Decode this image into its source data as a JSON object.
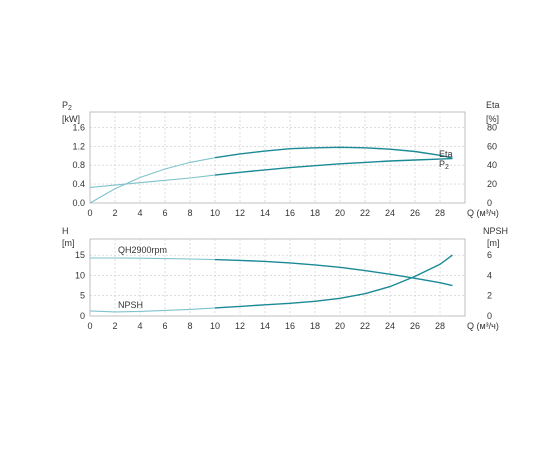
{
  "colors": {
    "curve_dark": "#1a8a96",
    "curve_light": "#7fc3cc",
    "text": "#333333",
    "grid": "#c8c8c8"
  },
  "chart_data": [
    {
      "type": "line",
      "panel": "power-efficiency",
      "xlabel": "Q (м³/ч)",
      "xlim": [
        0,
        30
      ],
      "x_ticks": [
        0,
        2,
        4,
        6,
        8,
        10,
        12,
        14,
        16,
        18,
        20,
        22,
        24,
        26,
        28
      ],
      "ylabel_left": "P2 [kW]",
      "ylim_left": [
        0,
        1.8
      ],
      "y_ticks_left": [
        "0.0",
        "0.4",
        "0.8",
        "1.2",
        "1.6"
      ],
      "ylabel_right": "Eta [%]",
      "ylim_right": [
        0,
        90
      ],
      "y_ticks_right": [
        "0",
        "20",
        "40",
        "60",
        "80"
      ],
      "grid": true,
      "series": [
        {
          "name": "Eta",
          "axis": "right",
          "x": [
            0,
            2,
            4,
            6,
            8,
            10,
            12,
            14,
            16,
            18,
            20,
            22,
            24,
            26,
            28,
            29
          ],
          "y": [
            0,
            15,
            27,
            36,
            43,
            48,
            52,
            55,
            57.5,
            58.5,
            59,
            58.5,
            57,
            54.5,
            50.5,
            47.5
          ]
        },
        {
          "name": "P2",
          "axis": "left",
          "x": [
            0,
            2,
            4,
            6,
            8,
            10,
            12,
            14,
            16,
            18,
            20,
            22,
            24,
            26,
            28,
            29
          ],
          "y": [
            0.33,
            0.38,
            0.43,
            0.48,
            0.53,
            0.59,
            0.65,
            0.7,
            0.75,
            0.79,
            0.83,
            0.86,
            0.89,
            0.91,
            0.93,
            0.94
          ]
        }
      ]
    },
    {
      "type": "line",
      "panel": "head-npsh",
      "xlabel": "Q (м³/ч)",
      "xlim": [
        0,
        30
      ],
      "x_ticks": [
        0,
        2,
        4,
        6,
        8,
        10,
        12,
        14,
        16,
        18,
        20,
        22,
        24,
        26,
        28
      ],
      "ylabel_left": "H [m]",
      "ylim_left": [
        0,
        17.5
      ],
      "y_ticks_left": [
        "0",
        "5",
        "10",
        "15"
      ],
      "ylabel_right": "NPSH [m]",
      "ylim_right": [
        0,
        7
      ],
      "y_ticks_right": [
        "0",
        "2",
        "4",
        "6"
      ],
      "grid": true,
      "series": [
        {
          "name": "QH2900rpm",
          "axis": "left",
          "x": [
            0,
            2,
            4,
            6,
            8,
            10,
            12,
            14,
            16,
            18,
            20,
            22,
            24,
            26,
            28,
            29
          ],
          "y": [
            14.3,
            14.3,
            14.25,
            14.15,
            14.05,
            13.9,
            13.7,
            13.45,
            13.1,
            12.6,
            12.0,
            11.2,
            10.3,
            9.3,
            8.2,
            7.5
          ]
        },
        {
          "name": "NPSH",
          "axis": "right",
          "x": [
            0,
            2,
            4,
            6,
            8,
            10,
            12,
            14,
            16,
            18,
            20,
            22,
            24,
            26,
            28,
            29
          ],
          "y": [
            0.5,
            0.4,
            0.45,
            0.55,
            0.65,
            0.8,
            0.95,
            1.1,
            1.25,
            1.45,
            1.75,
            2.2,
            2.9,
            3.9,
            5.1,
            6.0
          ]
        }
      ]
    }
  ]
}
